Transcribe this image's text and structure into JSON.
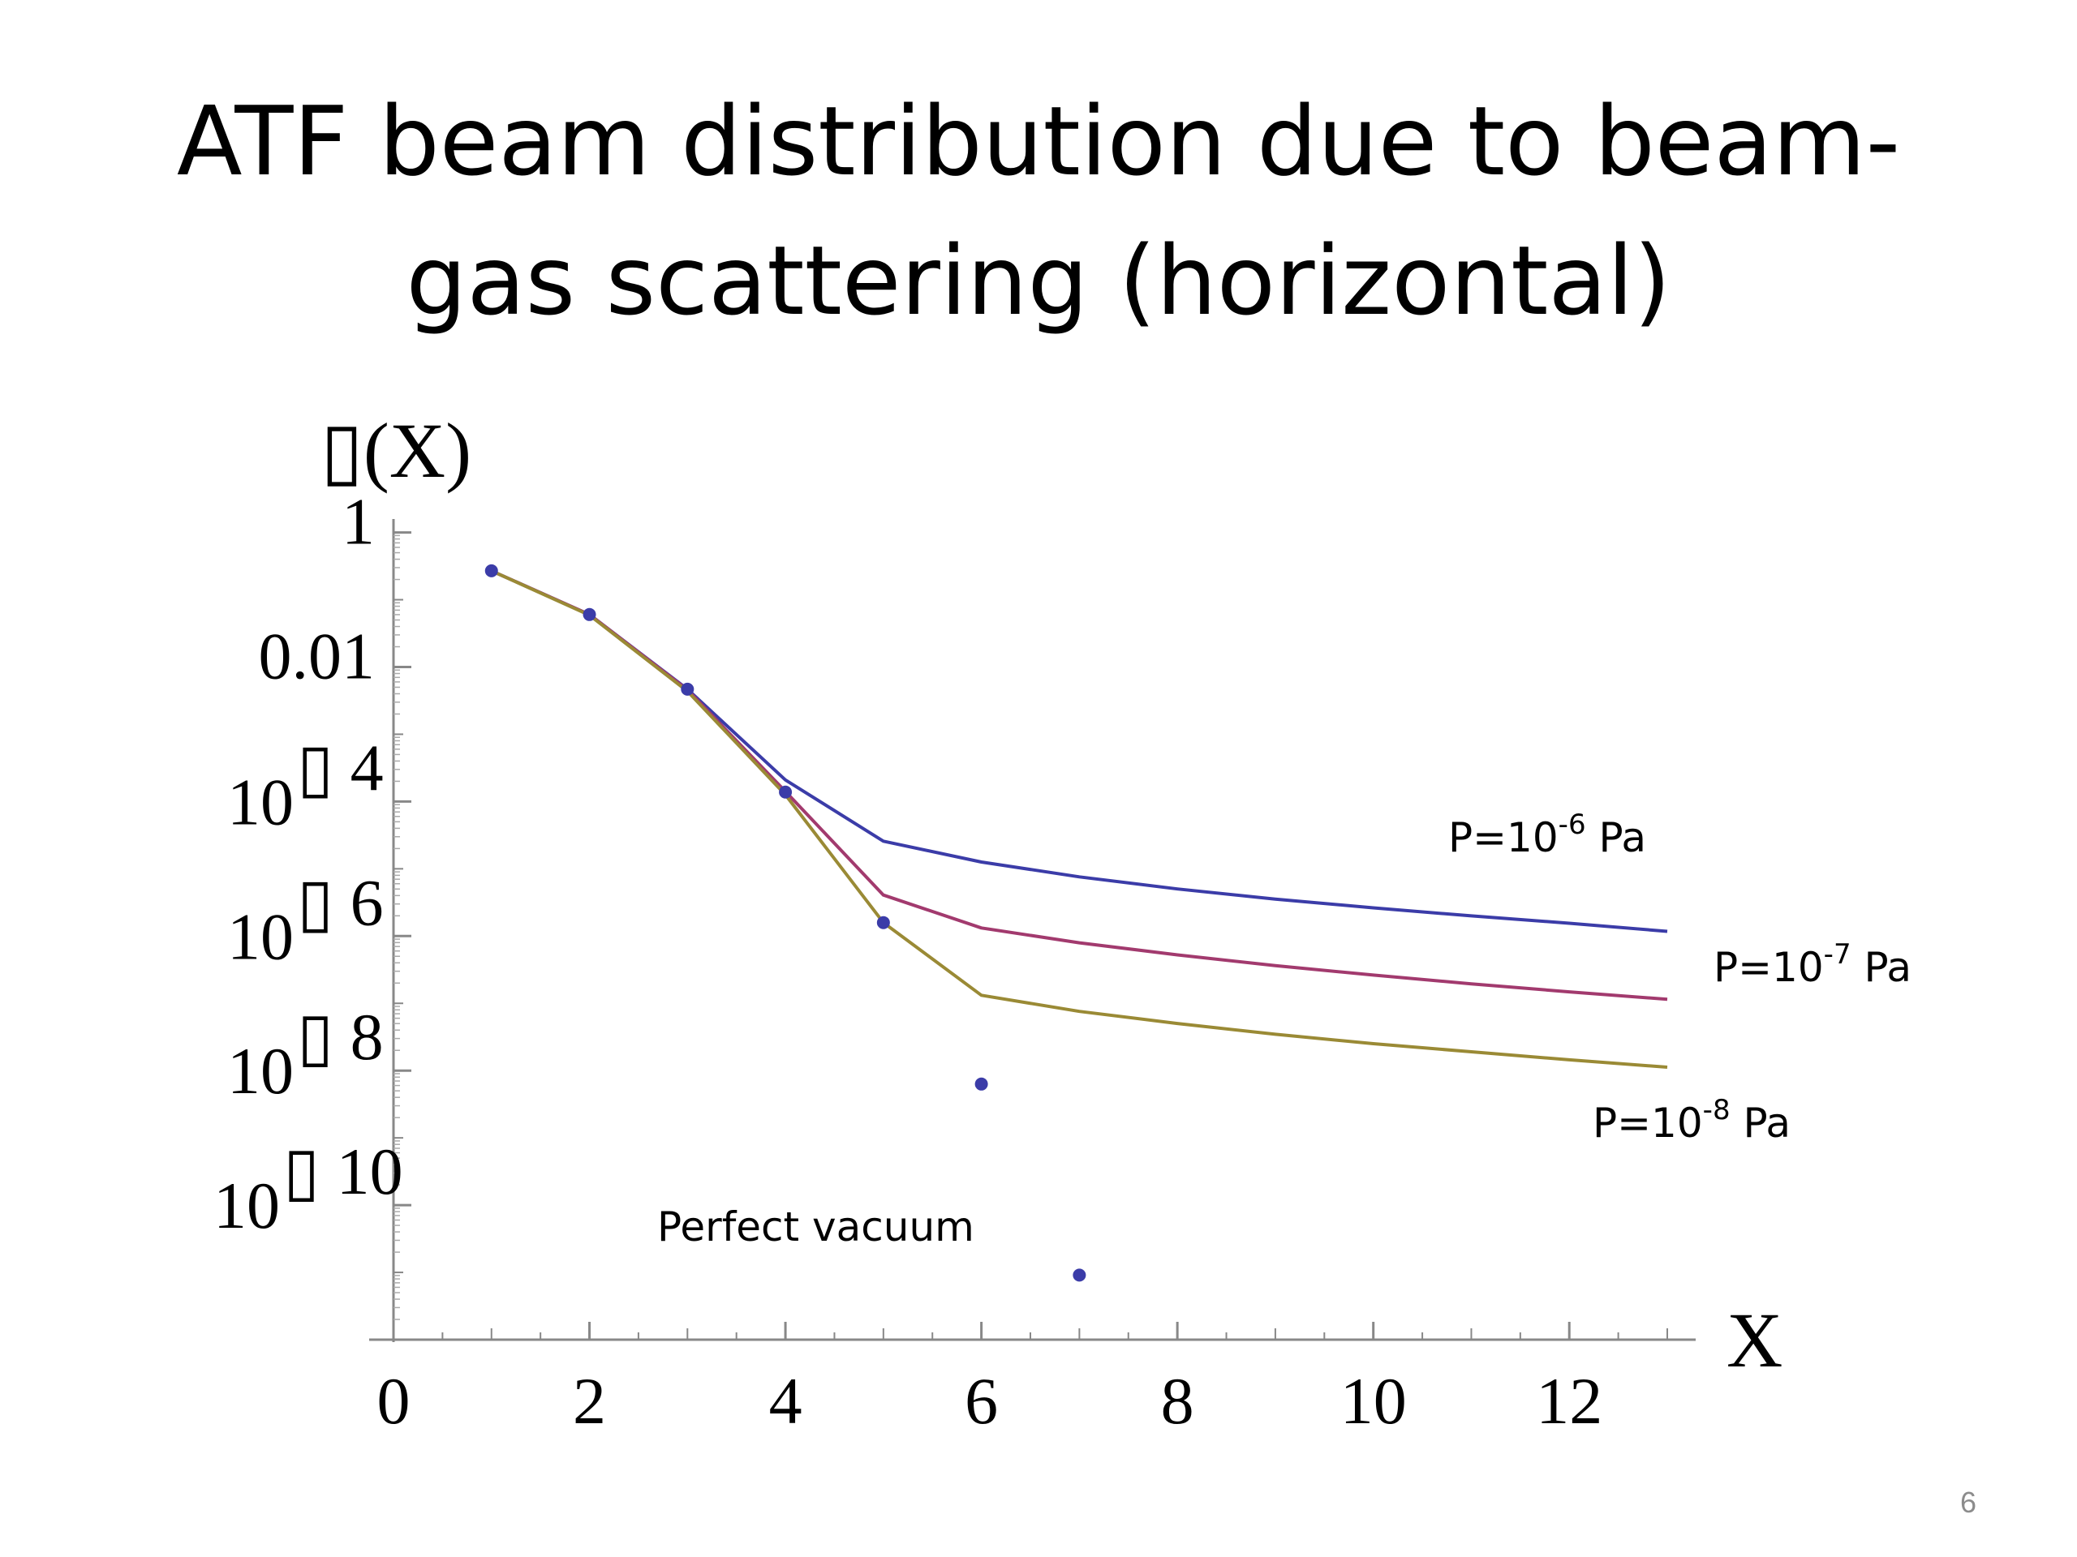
{
  "slide": {
    "title_line1": "ATF beam distribution due to beam-",
    "title_line2": "gas scattering (horizontal)",
    "page_number": "6"
  },
  "chart_data": {
    "type": "line",
    "xlabel": "X",
    "ylabel": "▯(X)",
    "xlim": [
      0,
      13
    ],
    "ylim_log10": [
      -12,
      0.2
    ],
    "y_scale": "log",
    "x_ticks": [
      {
        "value": 0,
        "label": "0"
      },
      {
        "value": 2,
        "label": "2"
      },
      {
        "value": 4,
        "label": "4"
      },
      {
        "value": 6,
        "label": "6"
      },
      {
        "value": 8,
        "label": "8"
      },
      {
        "value": 10,
        "label": "10"
      },
      {
        "value": 12,
        "label": "12"
      }
    ],
    "y_ticks": [
      {
        "log10": 0,
        "base": "1",
        "exp": ""
      },
      {
        "log10": -2,
        "base": "0.01",
        "exp": ""
      },
      {
        "log10": -4,
        "base": "10",
        "exp": "▯ 4"
      },
      {
        "log10": -6,
        "base": "10",
        "exp": "▯ 6"
      },
      {
        "log10": -8,
        "base": "10",
        "exp": "▯ 8"
      },
      {
        "log10": -10,
        "base": "10",
        "exp": "▯ 10"
      }
    ],
    "series": [
      {
        "name": "P=10-6 Pa",
        "label_text": "P=10",
        "label_exp": "-6",
        "label_unit": " Pa",
        "color": "#3b3ca8",
        "x": [
          1,
          2,
          3,
          4,
          5,
          6,
          7,
          8,
          9,
          10,
          11,
          12,
          13
        ],
        "log10_y": [
          -0.57,
          -1.22,
          -2.33,
          -3.68,
          -4.59,
          -4.9,
          -5.12,
          -5.3,
          -5.45,
          -5.58,
          -5.7,
          -5.81,
          -5.93
        ]
      },
      {
        "name": "P=10-7 Pa",
        "label_text": "P=10",
        "label_exp": "-7",
        "label_unit": " Pa",
        "color": "#a23a6e",
        "x": [
          1,
          2,
          3,
          4,
          5,
          6,
          7,
          8,
          9,
          10,
          11,
          12,
          13
        ],
        "log10_y": [
          -0.57,
          -1.22,
          -2.34,
          -3.85,
          -5.39,
          -5.88,
          -6.1,
          -6.28,
          -6.44,
          -6.58,
          -6.71,
          -6.83,
          -6.94
        ]
      },
      {
        "name": "P=10-8 Pa",
        "label_text": "P=10",
        "label_exp": "-8",
        "label_unit": " Pa",
        "color": "#9a8a35",
        "x": [
          1,
          2,
          3,
          4,
          5,
          6,
          7,
          8,
          9,
          10,
          11,
          12,
          13
        ],
        "log10_y": [
          -0.57,
          -1.23,
          -2.36,
          -3.9,
          -5.8,
          -6.88,
          -7.12,
          -7.3,
          -7.46,
          -7.6,
          -7.72,
          -7.84,
          -7.95
        ]
      },
      {
        "name": "Perfect vacuum",
        "label_text": "Perfect vacuum",
        "color": "#3b3ca8",
        "marker": "dot",
        "x": [
          1,
          2,
          3,
          4,
          5,
          6,
          7
        ],
        "log10_y": [
          -0.57,
          -1.22,
          -2.33,
          -3.86,
          -5.8,
          -8.2,
          -11.04
        ]
      }
    ]
  }
}
